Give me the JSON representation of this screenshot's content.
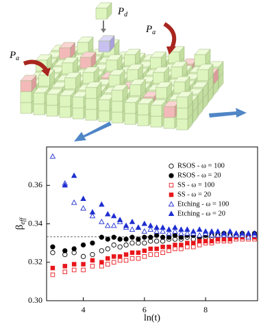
{
  "illustration": {
    "labels": [
      {
        "symbol": "P",
        "sub": "d"
      },
      {
        "symbol": "P",
        "sub": "a"
      },
      {
        "symbol": "P",
        "sub": "a"
      }
    ]
  },
  "chart_data": {
    "type": "scatter",
    "xlabel": "ln(t)",
    "ylabel": "β",
    "ylabel_sub": "eff",
    "xlim": [
      2.8,
      9.7
    ],
    "ylim": [
      0.3,
      0.38
    ],
    "xticks": [
      4,
      6,
      8
    ],
    "yticks": [
      {
        "value": 0.3,
        "label": "0.30"
      },
      {
        "value": 0.32,
        "label": "0.32"
      },
      {
        "value": 0.34,
        "label": "0.34"
      },
      {
        "value": 0.36,
        "label": "0.36"
      }
    ],
    "reference_line": 0.3333,
    "legend": "upper right",
    "x": [
      3.0,
      3.4,
      3.7,
      4.0,
      4.3,
      4.6,
      4.8,
      5.0,
      5.2,
      5.4,
      5.6,
      5.8,
      6.0,
      6.2,
      6.4,
      6.6,
      6.8,
      7.0,
      7.2,
      7.4,
      7.6,
      7.8,
      8.0,
      8.2,
      8.4,
      8.6,
      8.8,
      9.0,
      9.2,
      9.4,
      9.6
    ],
    "series": [
      {
        "name": "RSOS - ω = 100",
        "color": "#000000",
        "marker": "circle",
        "filled": false,
        "values": [
          0.325,
          0.324,
          0.325,
          0.323,
          0.324,
          0.326,
          0.327,
          0.329,
          0.328,
          0.329,
          0.33,
          0.33,
          0.33,
          0.331,
          0.331,
          0.331,
          0.332,
          0.332,
          0.332,
          0.333,
          0.332,
          0.333,
          0.333,
          0.333,
          0.333,
          0.334,
          0.333,
          0.334,
          0.334,
          0.334,
          0.334
        ]
      },
      {
        "name": "RSOS - ω = 20",
        "color": "#000000",
        "marker": "circle",
        "filled": true,
        "values": [
          0.328,
          0.326,
          0.327,
          0.329,
          0.33,
          0.333,
          0.332,
          0.333,
          0.332,
          0.332,
          0.333,
          0.332,
          0.333,
          0.333,
          0.334,
          0.333,
          0.333,
          0.334,
          0.333,
          0.334,
          0.334,
          0.333,
          0.334,
          0.334,
          0.334,
          0.335,
          0.334,
          0.334,
          0.335,
          0.334,
          0.335
        ]
      },
      {
        "name": "SS - ω = 100",
        "color": "#e8171b",
        "marker": "square",
        "filled": false,
        "values": [
          0.3135,
          0.315,
          0.316,
          0.316,
          0.318,
          0.318,
          0.319,
          0.32,
          0.321,
          0.321,
          0.322,
          0.322,
          0.323,
          0.324,
          0.324,
          0.325,
          0.326,
          0.327,
          0.327,
          0.328,
          0.328,
          0.329,
          0.33,
          0.33,
          0.331,
          0.331,
          0.331,
          0.332,
          0.332,
          0.332,
          0.332
        ]
      },
      {
        "name": "SS - ω = 20",
        "color": "#e8171b",
        "marker": "square",
        "filled": true,
        "values": [
          0.317,
          0.318,
          0.319,
          0.319,
          0.321,
          0.32,
          0.322,
          0.323,
          0.323,
          0.324,
          0.325,
          0.325,
          0.326,
          0.327,
          0.327,
          0.328,
          0.328,
          0.329,
          0.329,
          0.33,
          0.33,
          0.331,
          0.331,
          0.331,
          0.332,
          0.332,
          0.332,
          0.333,
          0.333,
          0.333,
          0.333
        ]
      },
      {
        "name": "Etching - ω = 100",
        "color": "#1f2fd0",
        "marker": "triangle",
        "filled": false,
        "values": [
          0.375,
          0.361,
          0.351,
          0.348,
          0.344,
          0.341,
          0.339,
          0.339,
          0.341,
          0.338,
          0.337,
          0.338,
          0.336,
          0.337,
          0.336,
          0.336,
          0.335,
          0.336,
          0.335,
          0.335,
          0.335,
          0.334,
          0.335,
          0.334,
          0.334,
          0.334,
          0.334,
          0.334,
          0.334,
          0.333,
          0.334
        ]
      },
      {
        "name": "Etching - ω = 20",
        "color": "#1f2fd0",
        "marker": "triangle",
        "filled": true,
        "values": [
          null,
          0.36,
          0.365,
          0.353,
          0.346,
          0.35,
          0.345,
          0.344,
          0.342,
          0.339,
          0.341,
          0.338,
          0.34,
          0.339,
          0.338,
          0.338,
          0.337,
          0.338,
          0.337,
          0.337,
          0.336,
          0.337,
          0.336,
          0.336,
          0.336,
          0.335,
          0.336,
          0.335,
          0.335,
          0.335,
          0.335
        ]
      }
    ]
  }
}
